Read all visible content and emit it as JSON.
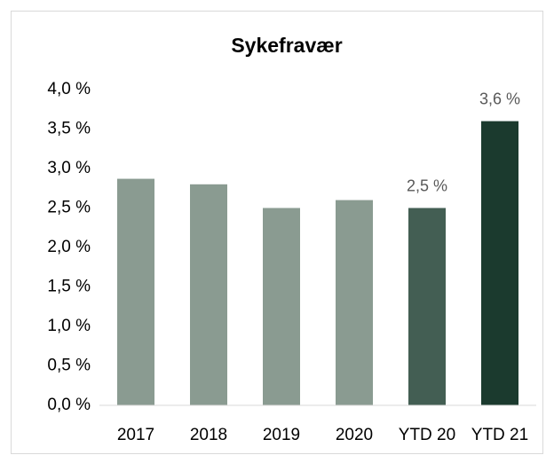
{
  "chart_data": {
    "type": "bar",
    "title": "Sykefravær",
    "categories": [
      "2017",
      "2018",
      "2019",
      "2020",
      "YTD 20",
      "YTD 21"
    ],
    "values": [
      2.87,
      2.8,
      2.5,
      2.6,
      2.5,
      3.6
    ],
    "value_labels": [
      null,
      null,
      null,
      null,
      "2,5 %",
      "3,6 %"
    ],
    "colors": [
      "#8a9b91",
      "#8a9b91",
      "#8a9b91",
      "#8a9b91",
      "#435e53",
      "#1b3a2e"
    ],
    "ylim": [
      0,
      4
    ],
    "yticks": [
      {
        "value": 0,
        "label": "0,0 %"
      },
      {
        "value": 0.5,
        "label": "0,5 %"
      },
      {
        "value": 1,
        "label": "1,0 %"
      },
      {
        "value": 1.5,
        "label": "1,5 %"
      },
      {
        "value": 2,
        "label": "2,0 %"
      },
      {
        "value": 2.5,
        "label": "2,5 %"
      },
      {
        "value": 3,
        "label": "3,0 %"
      },
      {
        "value": 3.5,
        "label": "3,5 %"
      },
      {
        "value": 4,
        "label": "4,0 %"
      }
    ],
    "grid": false
  }
}
